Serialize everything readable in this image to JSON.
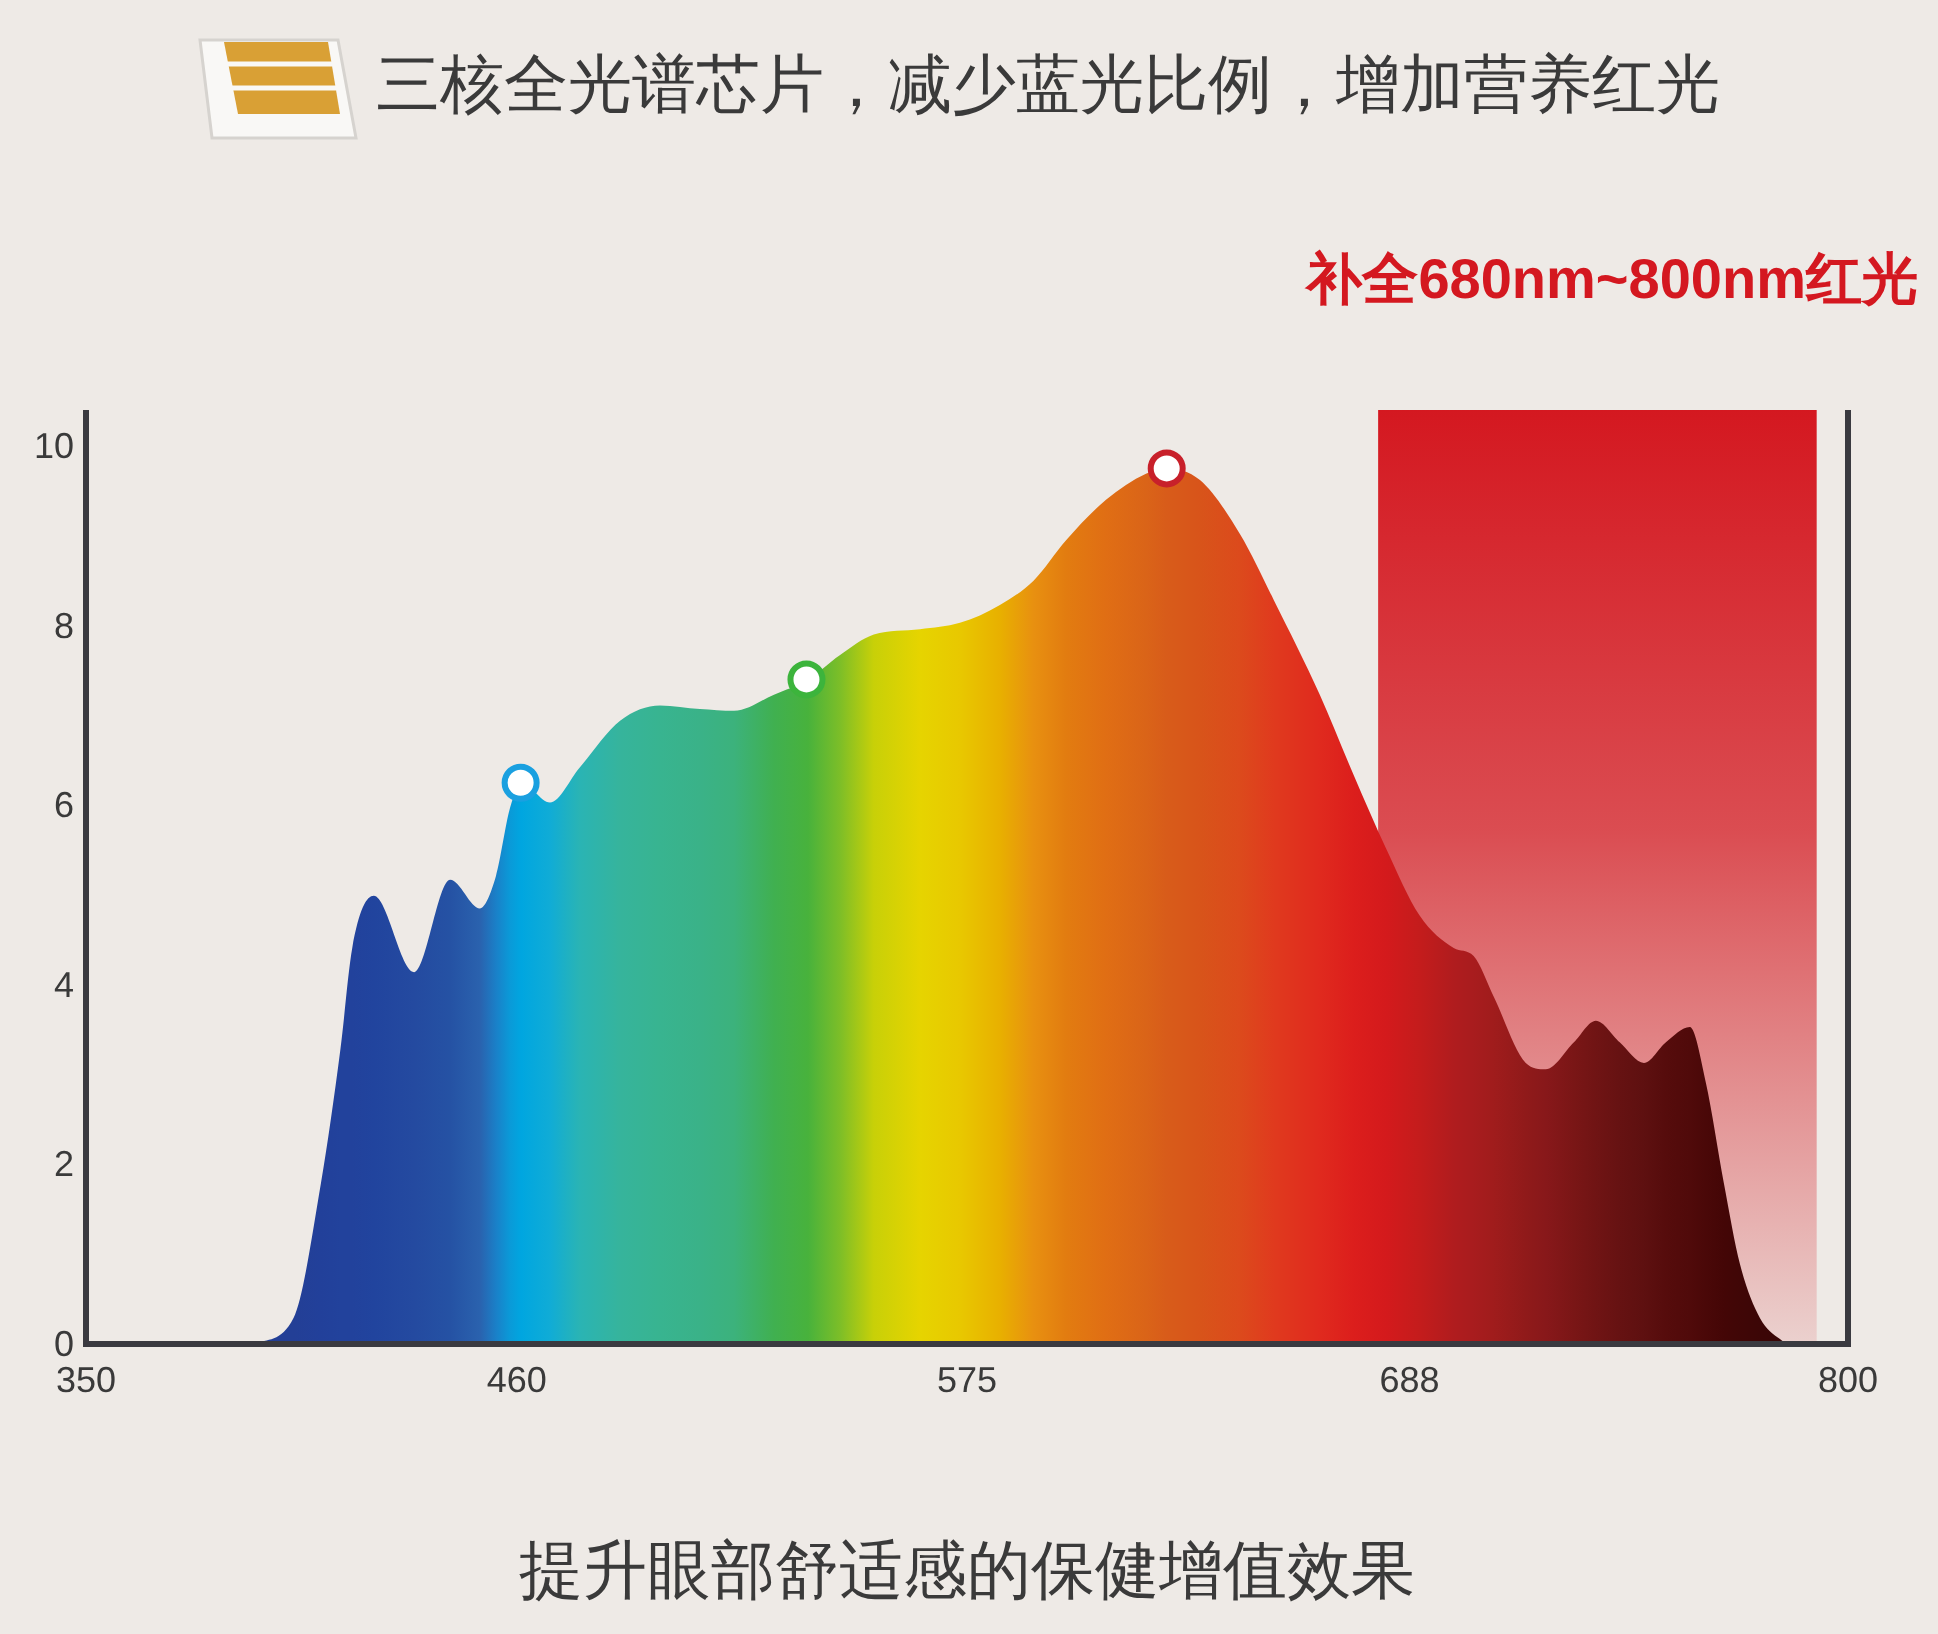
{
  "chart_data": {
    "type": "area",
    "title": "三核全光谱芯片，减少蓝光比例，增加营养红光",
    "annotations": [
      "提升眼部舒适感的保健增值效果"
    ],
    "xlim": [
      350,
      800
    ],
    "xticks": [
      350,
      460,
      575,
      688,
      800
    ],
    "ylim": [
      0,
      10.4
    ],
    "yticks": [
      0,
      2,
      4,
      6,
      8,
      10
    ],
    "bands": [
      {
        "axis": "x",
        "from": 680,
        "to": 792,
        "label": "补全680nm~800nm红光",
        "color": "#d41820"
      }
    ],
    "series": [
      {
        "x": [
          393,
          403,
          410,
          415,
          418,
          423.5,
          433.8,
          443,
          450.6,
          454.7,
          458.3,
          461.2,
          468.5,
          476.1,
          486.4,
          496.6,
          506.8,
          515.5,
          525.7,
          534.4,
          542.5,
          551.2,
          563,
          573.2,
          583.4,
          592,
          600.3,
          610.5,
          620.7,
          625.8,
          634.5,
          644.7,
          653.4,
          665.1,
          673.8,
          682,
          690.6,
          699.3,
          704.4,
          709.5,
          717.7,
          722.8,
          730,
          735.6,
          741.7,
          747.9,
          753.5,
          759.6,
          763.7,
          768.3,
          772.4,
          777.5,
          784.1
        ],
        "values": [
          0,
          0.29,
          1.79,
          3.29,
          4.41,
          4.99,
          4.14,
          5.17,
          4.85,
          5.21,
          5.97,
          6.25,
          6.03,
          6.42,
          6.94,
          7.11,
          7.07,
          7.05,
          7.23,
          7.4,
          7.67,
          7.9,
          7.96,
          8.03,
          8.23,
          8.5,
          8.95,
          9.4,
          9.69,
          9.75,
          9.62,
          9.02,
          8.28,
          7.23,
          6.33,
          5.52,
          4.77,
          4.41,
          4.32,
          3.87,
          3.13,
          3.06,
          3.36,
          3.6,
          3.36,
          3.13,
          3.36,
          3.53,
          2.91,
          1.79,
          0.89,
          0.29,
          0
        ],
        "colors": [
          "#233f96",
          "#233f96",
          "#22409a",
          "#22429c",
          "#22429c",
          "#21449e",
          "#244aa0",
          "#2552a4",
          "#2a62ae",
          "#1a80c8",
          "#0a9ad8",
          "#00a6e0",
          "#10acd6",
          "#2ab4b4",
          "#36b49c",
          "#38b490",
          "#3ab288",
          "#3cb27c",
          "#40b050",
          "#48b23c",
          "#7cbe28",
          "#c8d008",
          "#e6d400",
          "#e8c800",
          "#e8b000",
          "#e89010",
          "#e27c10",
          "#e06e14",
          "#da6418",
          "#d85c1a",
          "#d8541a",
          "#dc4a1c",
          "#e03a1e",
          "#e02a1e",
          "#dc1e1c",
          "#d41a1c",
          "#c41c1c",
          "#b01c1e",
          "#a81c1e",
          "#a01c1c",
          "#901a1a",
          "#88181a",
          "#7a1616",
          "#701414",
          "#661212",
          "#5e1010",
          "#560c0c",
          "#500a0a",
          "#4a0808",
          "#440606",
          "#400606",
          "#3c0606",
          "#380606"
        ]
      },
      {
        "type": "scatter",
        "marker": "circle",
        "x": [
          461,
          534,
          626
        ],
        "values": [
          6.25,
          7.4,
          9.75
        ],
        "colors": [
          "#1aa0e0",
          "#3cb43c",
          "#c8202a"
        ]
      }
    ]
  }
}
